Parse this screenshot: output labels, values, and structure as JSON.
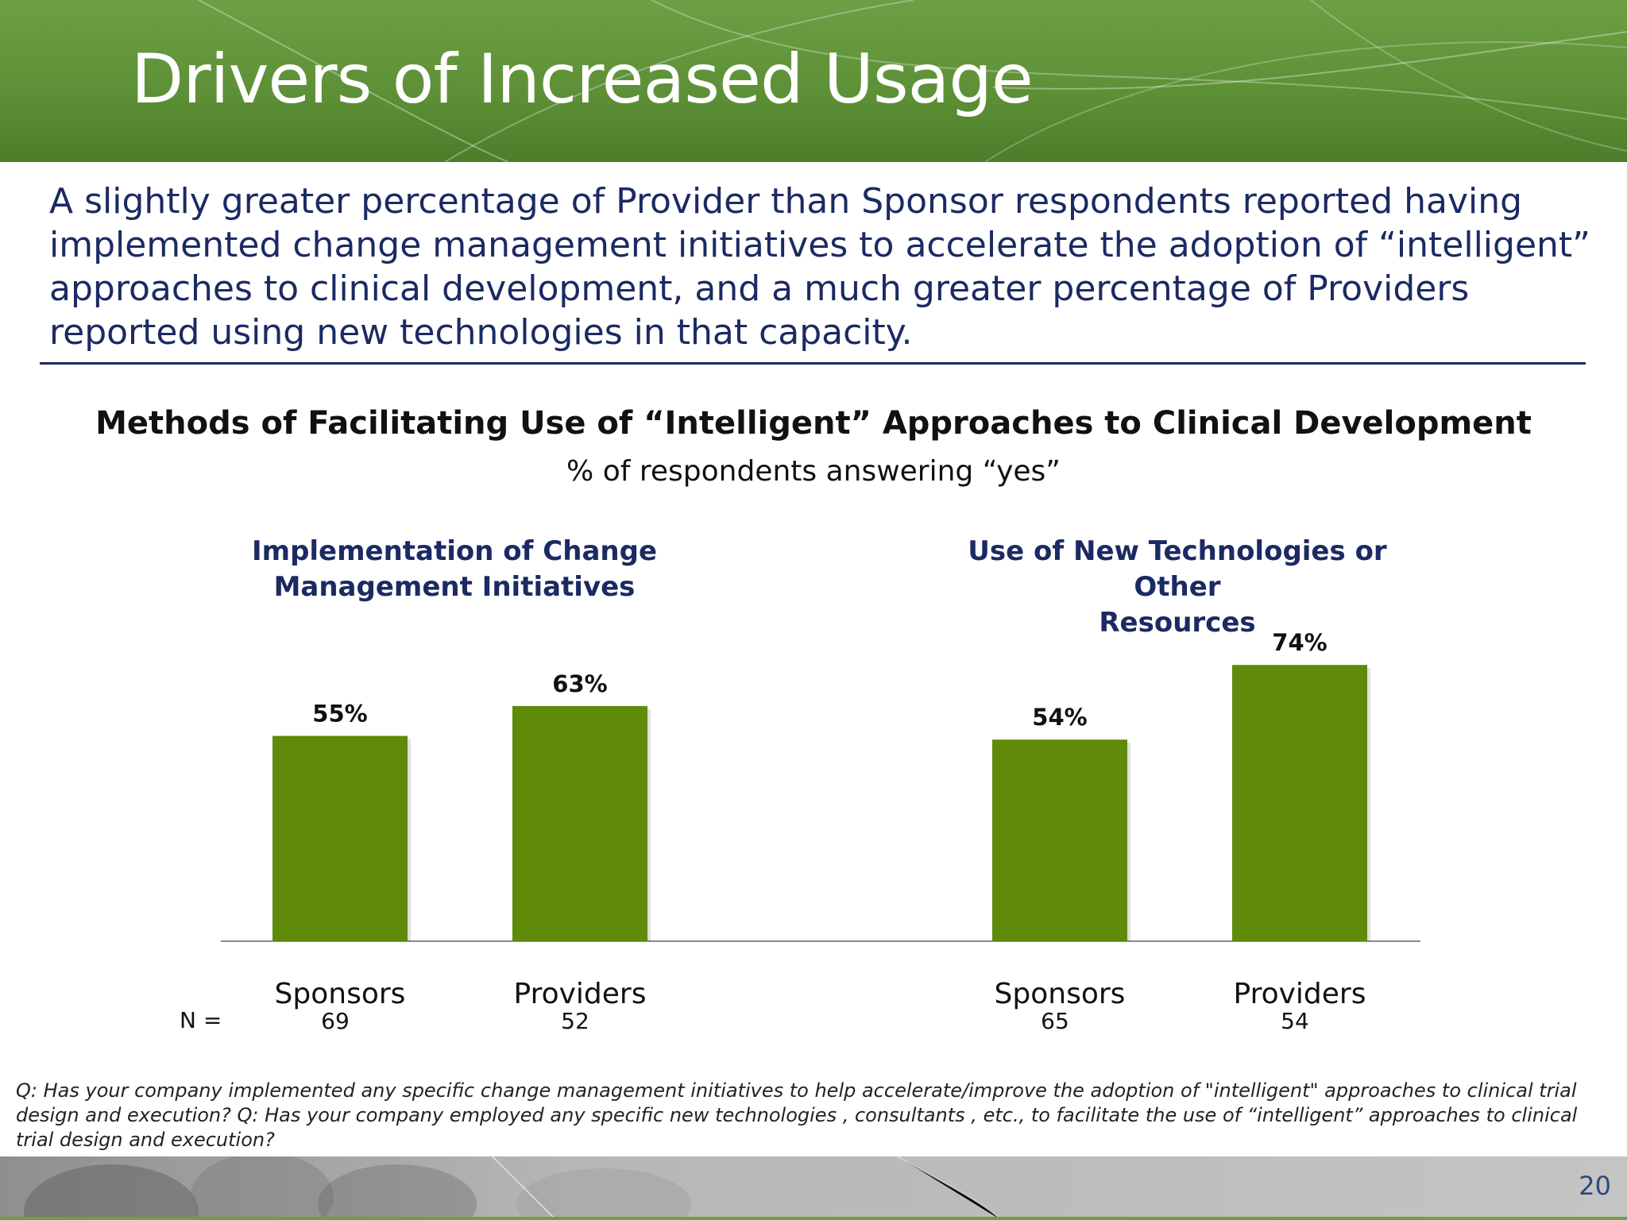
{
  "slide": {
    "title": "Drivers of Increased Usage",
    "summary": "A slightly greater percentage of Provider than Sponsor respondents reported having implemented change management initiatives to accelerate the adoption of “intelligent” approaches to clinical development, and a much greater percentage of Providers reported using new technologies in that capacity.",
    "footnote": "Q: Has your company implemented any specific change management initiatives to help accelerate/improve the adoption of \"intelligent\" approaches to clinical trial design and execution? Q: Has your company employed any specific new technologies , consultants , etc., to facilitate the use of “intelligent” approaches to clinical trial design and execution?",
    "page_number": "20",
    "n_label": "N ="
  },
  "colors": {
    "header_green": "#5e9137",
    "bar_green": "#5f8a0a",
    "navy": "#1b2a63"
  },
  "chart_data": {
    "type": "bar",
    "title": "Methods of Facilitating Use of “Intelligent” Approaches to Clinical Development",
    "subtitle": "% of respondents answering “yes”",
    "value_suffix": "%",
    "ylim": [
      0,
      100
    ],
    "grid": false,
    "groups": [
      {
        "title_lines": [
          "Implementation of Change",
          "Management Initiatives"
        ],
        "categories": [
          "Sponsors",
          "Providers"
        ],
        "values": [
          55,
          63
        ],
        "n": [
          "69",
          "52"
        ]
      },
      {
        "title_lines": [
          "Use of New Technologies or Other",
          "Resources"
        ],
        "categories": [
          "Sponsors",
          "Providers"
        ],
        "values": [
          54,
          74
        ],
        "n": [
          "65",
          "54"
        ]
      }
    ]
  }
}
